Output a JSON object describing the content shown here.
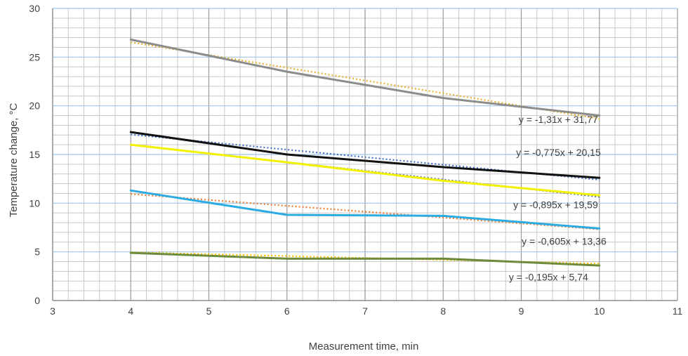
{
  "chart_data": {
    "type": "line",
    "title": "",
    "xlabel": "Measurement time, min",
    "ylabel": "Temperature change, °C",
    "xlim": [
      3,
      11
    ],
    "ylim": [
      0,
      30
    ],
    "x_major_ticks": [
      3,
      4,
      5,
      6,
      7,
      8,
      9,
      10,
      11
    ],
    "x_tick_labels": [
      "3",
      "4",
      "5",
      "6",
      "7",
      "8",
      "9",
      "10",
      "11"
    ],
    "y_major_ticks": [
      0,
      5,
      10,
      15,
      20,
      25,
      30
    ],
    "y_tick_labels": [
      "0",
      "5",
      "10",
      "15",
      "20",
      "25",
      "30"
    ],
    "grid": true,
    "legend": "none",
    "x": [
      4,
      6,
      8,
      10
    ],
    "series": [
      {
        "values": [
          26.8,
          23.5,
          20.8,
          19.0
        ],
        "color": "#8c8c8c",
        "trend_color": "#e7b32e",
        "trend": [
          -1.31,
          31.77
        ],
        "equation": "y = -1,31x + 31,77"
      },
      {
        "values": [
          17.3,
          15.0,
          13.7,
          12.6
        ],
        "color": "#111111",
        "trend_color": "#4472c4",
        "trend": [
          -0.775,
          20.15
        ],
        "equation": "y = -0,775x + 20,15"
      },
      {
        "values": [
          16.0,
          14.2,
          12.3,
          10.8
        ],
        "color": "#f2f200",
        "trend_color": "#4f6f9f",
        "trend": [
          -0.895,
          19.59
        ],
        "equation": "y = -0,895x + 19,59"
      },
      {
        "values": [
          11.3,
          8.8,
          8.7,
          7.4
        ],
        "color": "#2aace2",
        "trend_color": "#ed7d31",
        "trend": [
          -0.605,
          13.36
        ],
        "equation": "y = -0,605x + 13,36"
      },
      {
        "values": [
          4.9,
          4.3,
          4.3,
          3.6
        ],
        "color": "#6e8b3d",
        "trend_color": "#ffc000",
        "trend": [
          -0.195,
          5.74
        ],
        "equation": "y = -0,195x + 5,74"
      }
    ]
  }
}
